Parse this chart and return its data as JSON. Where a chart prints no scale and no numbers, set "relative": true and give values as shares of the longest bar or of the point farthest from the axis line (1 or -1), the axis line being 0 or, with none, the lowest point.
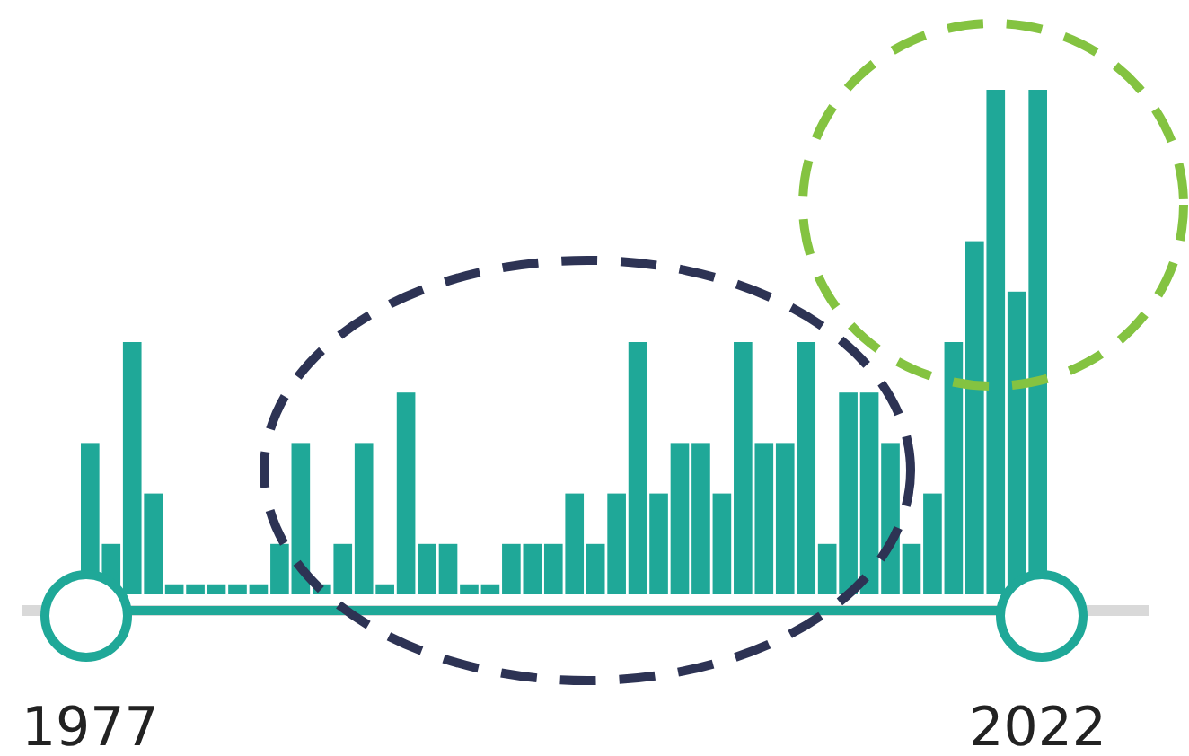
{
  "chart_data": {
    "type": "bar",
    "relative": true,
    "categories": [
      "1977",
      null,
      null,
      null,
      null,
      null,
      null,
      null,
      null,
      null,
      null,
      null,
      null,
      null,
      null,
      null,
      null,
      null,
      null,
      null,
      null,
      null,
      null,
      null,
      null,
      null,
      null,
      null,
      null,
      null,
      null,
      null,
      null,
      null,
      null,
      null,
      null,
      null,
      null,
      null,
      null,
      null,
      null,
      null,
      null,
      "2022"
    ],
    "series": [
      {
        "color": "#1fa898",
        "values": [
          0.3,
          0.1,
          0.5,
          0.2,
          0.02,
          0.02,
          0.02,
          0.02,
          0.02,
          0.1,
          0.3,
          0.02,
          0.1,
          0.3,
          0.02,
          0.4,
          0.1,
          0.1,
          0.02,
          0.02,
          0.1,
          0.1,
          0.1,
          0.2,
          0.1,
          0.2,
          0.5,
          0.2,
          0.3,
          0.3,
          0.2,
          0.5,
          0.3,
          0.3,
          0.5,
          0.1,
          0.4,
          0.4,
          0.3,
          0.1,
          0.2,
          0.5,
          0.7,
          1,
          0.6,
          1
        ]
      }
    ]
  }
}
